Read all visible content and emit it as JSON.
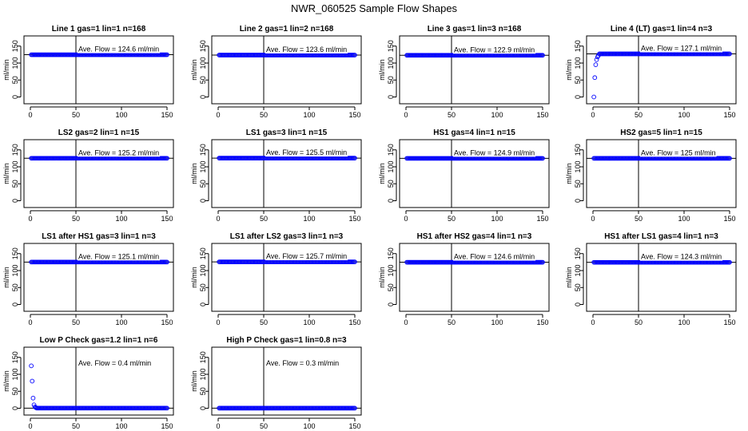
{
  "title": "NWR_060525  Sample Flow Shapes",
  "colors": {
    "points": "#0000ff",
    "axes": "#000000"
  },
  "chart_data": [
    {
      "type": "scatter",
      "title": "Line 1 gas=1 lin=1 n=168",
      "ylabel": "ml/min",
      "xlim": [
        0,
        150
      ],
      "ylim": [
        -20,
        180
      ],
      "xticks": [
        0,
        50,
        100,
        150
      ],
      "yticks": [
        0,
        50,
        100,
        150
      ],
      "vline_x": 50,
      "hline_y": 124.6,
      "avg_text": "Ave. Flow =  124.6  ml/min",
      "profile": {
        "x_start": 1,
        "x_end": 150,
        "n": 150,
        "steady": 124.6,
        "start": []
      }
    },
    {
      "type": "scatter",
      "title": "Line 2 gas=1 lin=2 n=168",
      "ylabel": "ml/min",
      "xlim": [
        0,
        150
      ],
      "ylim": [
        -20,
        180
      ],
      "xticks": [
        0,
        50,
        100,
        150
      ],
      "yticks": [
        0,
        50,
        100,
        150
      ],
      "vline_x": 50,
      "hline_y": 123.6,
      "avg_text": "Ave. Flow =  123.6  ml/min",
      "profile": {
        "x_start": 1,
        "x_end": 150,
        "n": 150,
        "steady": 123.6,
        "start": []
      }
    },
    {
      "type": "scatter",
      "title": "Line 3 gas=1 lin=3 n=168",
      "ylabel": "ml/min",
      "xlim": [
        0,
        150
      ],
      "ylim": [
        -20,
        180
      ],
      "xticks": [
        0,
        50,
        100,
        150
      ],
      "yticks": [
        0,
        50,
        100,
        150
      ],
      "vline_x": 50,
      "hline_y": 122.9,
      "avg_text": "Ave. Flow =  122.9  ml/min",
      "profile": {
        "x_start": 1,
        "x_end": 150,
        "n": 150,
        "steady": 122.9,
        "start": []
      }
    },
    {
      "type": "scatter",
      "title": "Line 4 (LT) gas=1 lin=4 n=3",
      "ylabel": "ml/min",
      "xlim": [
        0,
        150
      ],
      "ylim": [
        -20,
        180
      ],
      "xticks": [
        0,
        50,
        100,
        150
      ],
      "yticks": [
        0,
        50,
        100,
        150
      ],
      "vline_x": 50,
      "hline_y": 127.1,
      "avg_text": "Ave. Flow =  127.1  ml/min",
      "profile": {
        "x_start": 1,
        "x_end": 150,
        "n": 150,
        "steady": 127.1,
        "start": [
          0,
          57,
          95,
          110,
          118,
          122
        ]
      }
    },
    {
      "type": "scatter",
      "title": "LS2 gas=2 lin=1 n=15",
      "ylabel": "ml/min",
      "xlim": [
        0,
        150
      ],
      "ylim": [
        -20,
        180
      ],
      "xticks": [
        0,
        50,
        100,
        150
      ],
      "yticks": [
        0,
        50,
        100,
        150
      ],
      "vline_x": 50,
      "hline_y": 125.2,
      "avg_text": "Ave. Flow =  125.2  ml/min",
      "profile": {
        "x_start": 1,
        "x_end": 150,
        "n": 150,
        "steady": 125.2,
        "start": []
      }
    },
    {
      "type": "scatter",
      "title": "LS1 gas=3 lin=1 n=15",
      "ylabel": "ml/min",
      "xlim": [
        0,
        150
      ],
      "ylim": [
        -20,
        180
      ],
      "xticks": [
        0,
        50,
        100,
        150
      ],
      "yticks": [
        0,
        50,
        100,
        150
      ],
      "vline_x": 50,
      "hline_y": 125.5,
      "avg_text": "Ave. Flow =  125.5  ml/min",
      "profile": {
        "x_start": 1,
        "x_end": 150,
        "n": 150,
        "steady": 125.5,
        "start": []
      }
    },
    {
      "type": "scatter",
      "title": "HS1 gas=4 lin=1 n=15",
      "ylabel": "ml/min",
      "xlim": [
        0,
        150
      ],
      "ylim": [
        -20,
        180
      ],
      "xticks": [
        0,
        50,
        100,
        150
      ],
      "yticks": [
        0,
        50,
        100,
        150
      ],
      "vline_x": 50,
      "hline_y": 124.9,
      "avg_text": "Ave. Flow =  124.9  ml/min",
      "profile": {
        "x_start": 1,
        "x_end": 150,
        "n": 150,
        "steady": 124.9,
        "start": []
      }
    },
    {
      "type": "scatter",
      "title": "HS2 gas=5 lin=1 n=15",
      "ylabel": "ml/min",
      "xlim": [
        0,
        150
      ],
      "ylim": [
        -20,
        180
      ],
      "xticks": [
        0,
        50,
        100,
        150
      ],
      "yticks": [
        0,
        50,
        100,
        150
      ],
      "vline_x": 50,
      "hline_y": 125,
      "avg_text": "Ave. Flow =  125  ml/min",
      "profile": {
        "x_start": 1,
        "x_end": 150,
        "n": 150,
        "steady": 125,
        "start": []
      }
    },
    {
      "type": "scatter",
      "title": "LS1 after HS1 gas=3 lin=1 n=3",
      "ylabel": "ml/min",
      "xlim": [
        0,
        150
      ],
      "ylim": [
        -20,
        180
      ],
      "xticks": [
        0,
        50,
        100,
        150
      ],
      "yticks": [
        0,
        50,
        100,
        150
      ],
      "vline_x": 50,
      "hline_y": 125.1,
      "avg_text": "Ave. Flow =  125.1  ml/min",
      "profile": {
        "x_start": 1,
        "x_end": 150,
        "n": 150,
        "steady": 125.1,
        "start": []
      }
    },
    {
      "type": "scatter",
      "title": "LS1 after LS2 gas=3 lin=1 n=3",
      "ylabel": "ml/min",
      "xlim": [
        0,
        150
      ],
      "ylim": [
        -20,
        180
      ],
      "xticks": [
        0,
        50,
        100,
        150
      ],
      "yticks": [
        0,
        50,
        100,
        150
      ],
      "vline_x": 50,
      "hline_y": 125.7,
      "avg_text": "Ave. Flow =  125.7  ml/min",
      "profile": {
        "x_start": 1,
        "x_end": 150,
        "n": 150,
        "steady": 125.7,
        "start": []
      }
    },
    {
      "type": "scatter",
      "title": "HS1 after HS2 gas=4 lin=1 n=3",
      "ylabel": "ml/min",
      "xlim": [
        0,
        150
      ],
      "ylim": [
        -20,
        180
      ],
      "xticks": [
        0,
        50,
        100,
        150
      ],
      "yticks": [
        0,
        50,
        100,
        150
      ],
      "vline_x": 50,
      "hline_y": 124.6,
      "avg_text": "Ave. Flow =  124.6  ml/min",
      "profile": {
        "x_start": 1,
        "x_end": 150,
        "n": 150,
        "steady": 124.6,
        "start": []
      }
    },
    {
      "type": "scatter",
      "title": "HS1 after LS1 gas=4 lin=1 n=3",
      "ylabel": "ml/min",
      "xlim": [
        0,
        150
      ],
      "ylim": [
        -20,
        180
      ],
      "xticks": [
        0,
        50,
        100,
        150
      ],
      "yticks": [
        0,
        50,
        100,
        150
      ],
      "vline_x": 50,
      "hline_y": 124.3,
      "avg_text": "Ave. Flow =  124.3  ml/min",
      "profile": {
        "x_start": 1,
        "x_end": 150,
        "n": 150,
        "steady": 124.3,
        "start": []
      }
    },
    {
      "type": "scatter",
      "title": "Low P Check gas=1.2 lin=1 n=6",
      "ylabel": "ml/min",
      "xlim": [
        0,
        150
      ],
      "ylim": [
        -20,
        180
      ],
      "xticks": [
        0,
        50,
        100,
        150
      ],
      "yticks": [
        0,
        50,
        100,
        150
      ],
      "vline_x": 50,
      "hline_y": 0.4,
      "avg_text": "Ave. Flow =  0.4  ml/min",
      "profile": {
        "x_start": 1,
        "x_end": 150,
        "n": 150,
        "steady": 0.4,
        "start": [
          125,
          80,
          30,
          10,
          4,
          2
        ]
      }
    },
    {
      "type": "scatter",
      "title": "High P Check gas=1 lin=0.8 n=3",
      "ylabel": "ml/min",
      "xlim": [
        0,
        150
      ],
      "ylim": [
        -20,
        180
      ],
      "xticks": [
        0,
        50,
        100,
        150
      ],
      "yticks": [
        0,
        50,
        100,
        150
      ],
      "vline_x": 50,
      "hline_y": 0.3,
      "avg_text": "Ave. Flow =  0.3  ml/min",
      "profile": {
        "x_start": 1,
        "x_end": 150,
        "n": 150,
        "steady": 0.3,
        "start": []
      }
    }
  ]
}
